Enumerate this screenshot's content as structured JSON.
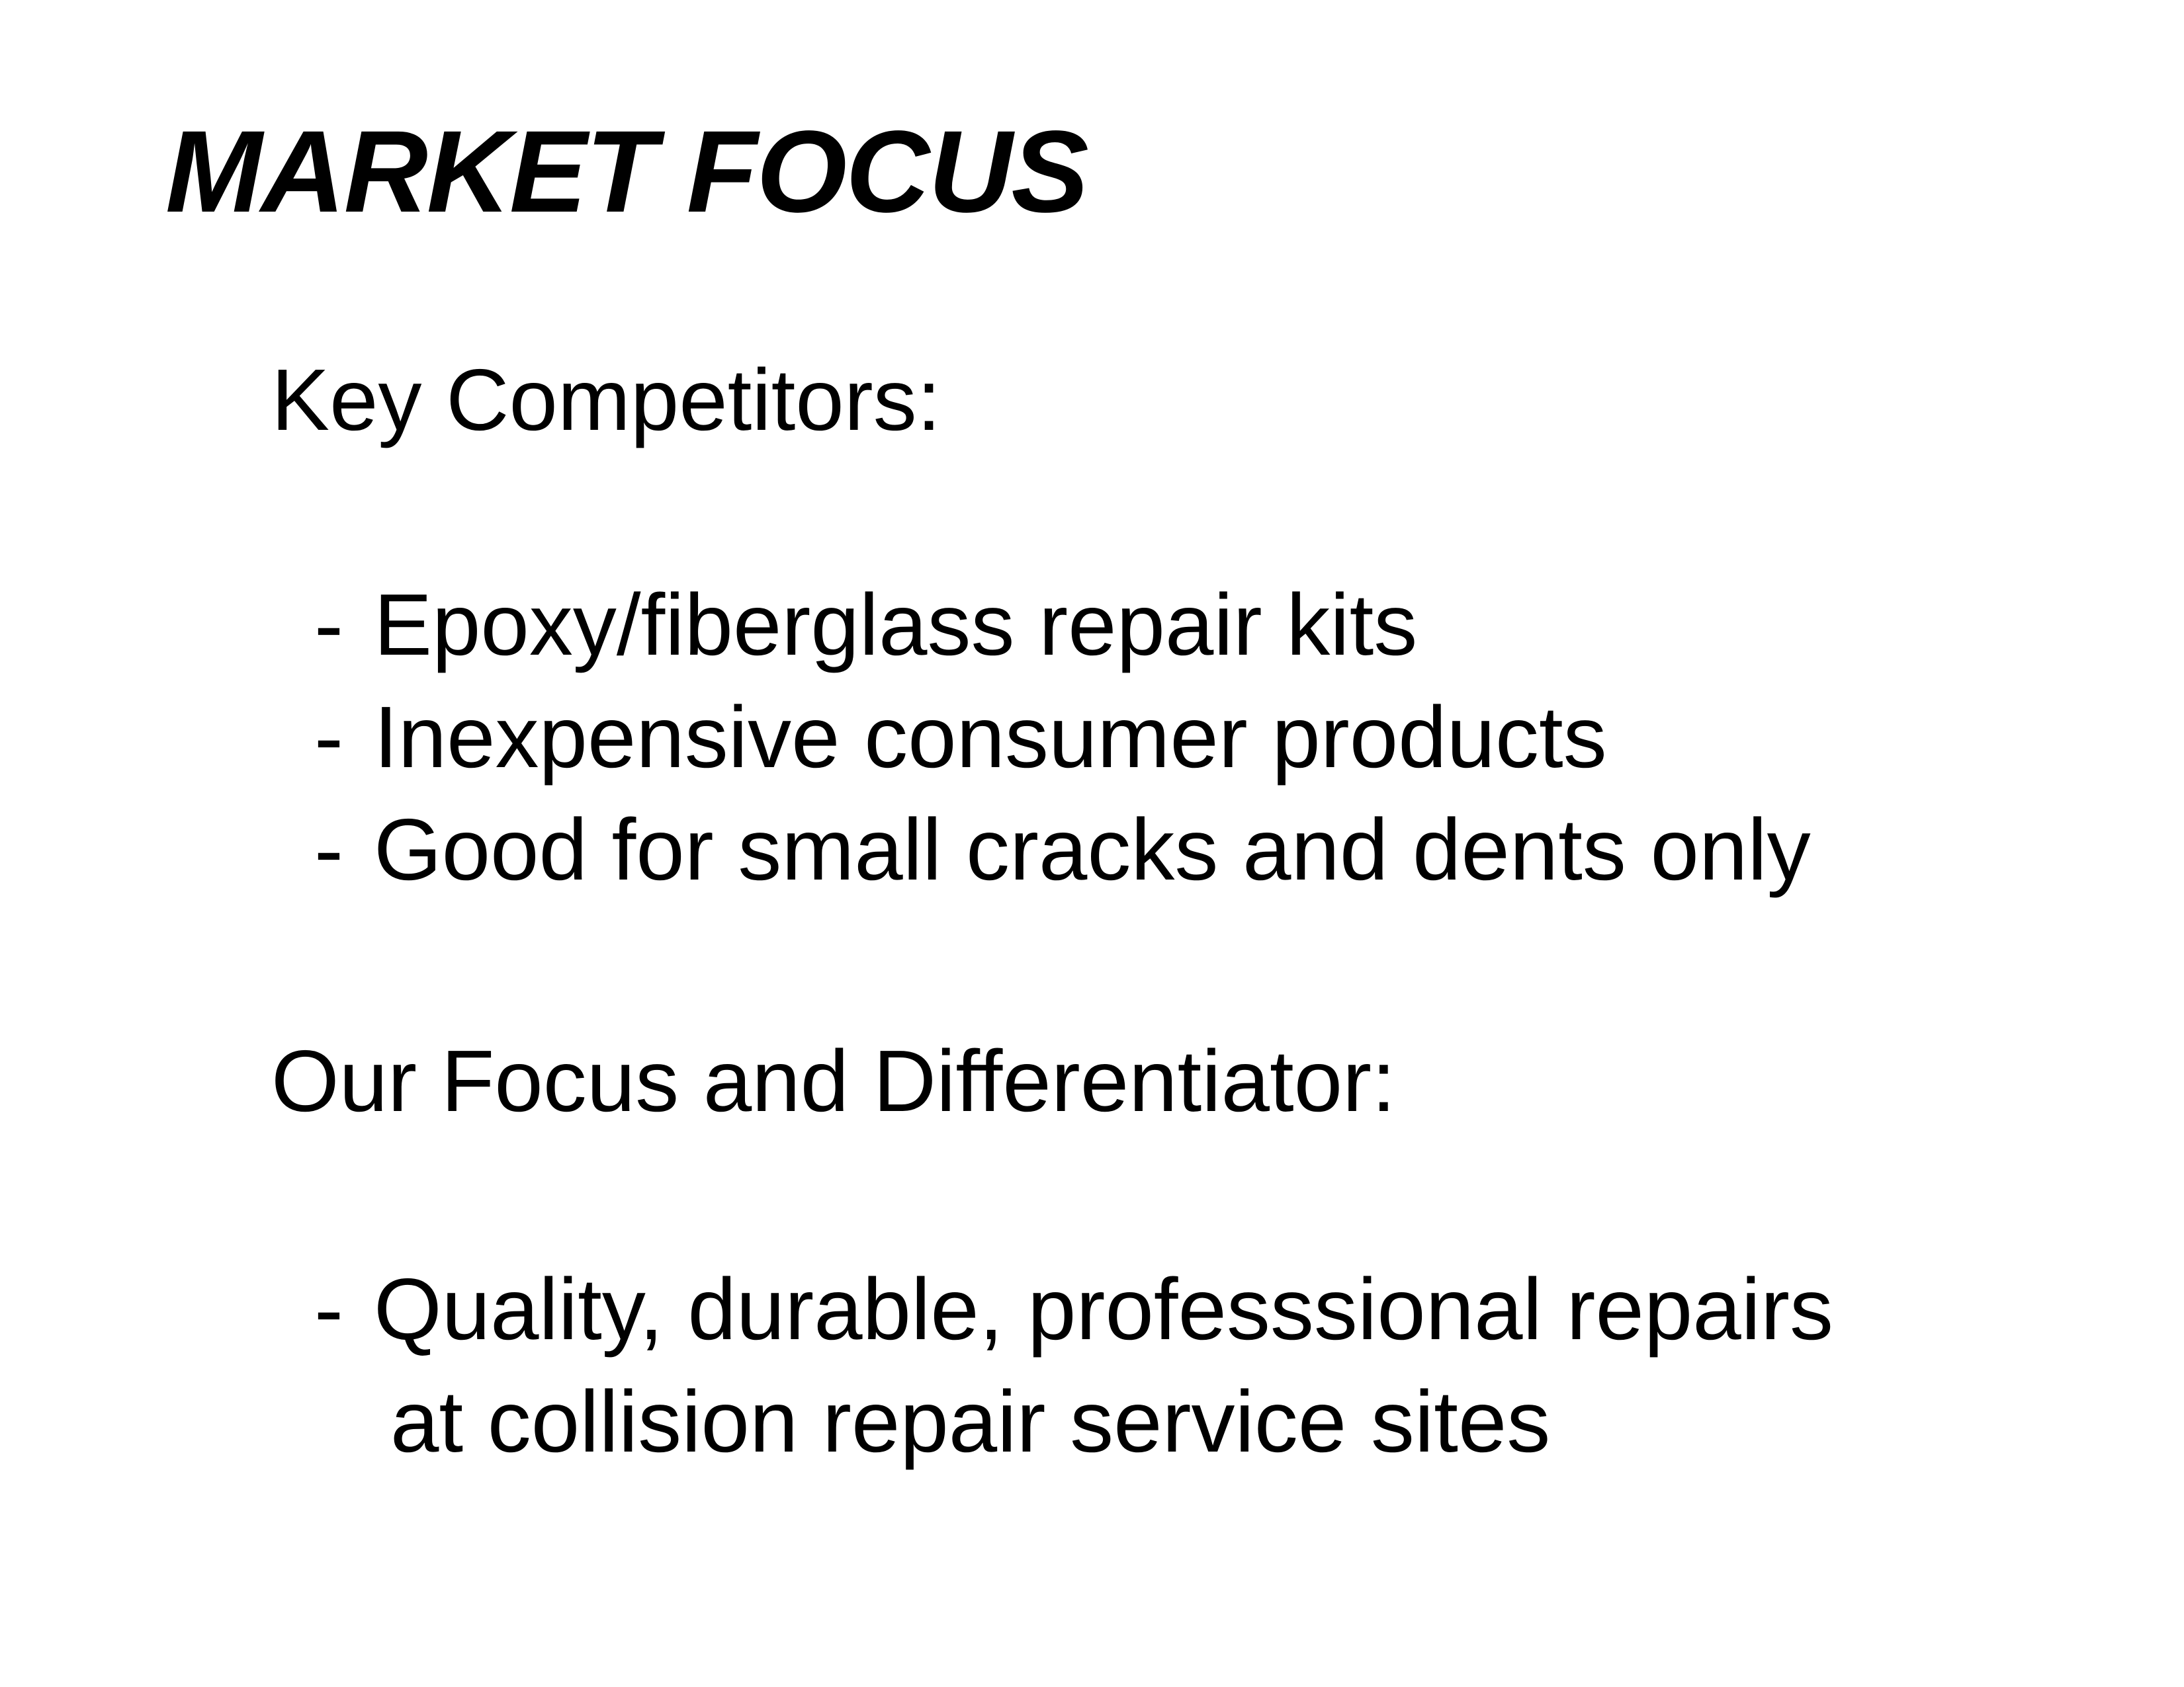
{
  "slide": {
    "title": "MARKET FOCUS",
    "sections": [
      {
        "heading": "Key Competitors:",
        "bullets": [
          {
            "dash": "-",
            "text": "Epoxy/fiberglass repair kits"
          },
          {
            "dash": "-",
            "text": "Inexpensive consumer products"
          },
          {
            "dash": "-",
            "text": "Good for small cracks and dents only"
          }
        ]
      },
      {
        "heading": "Our Focus and Differentiator:",
        "bullets": [
          {
            "dash": "-",
            "text": "Quality, durable, professsional repairs",
            "continuation": "at collision repair service sites"
          }
        ]
      }
    ]
  }
}
